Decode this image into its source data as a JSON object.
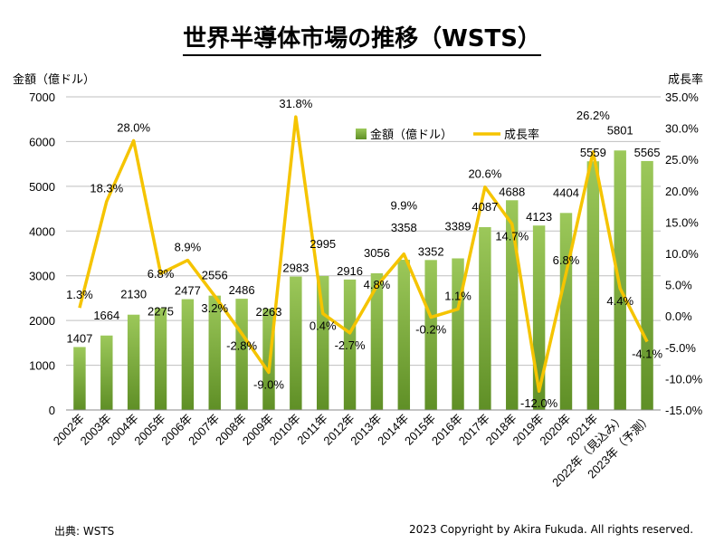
{
  "chart_data": {
    "type": "bar+line",
    "title": "世界半導体市場の推移（WSTS）",
    "ylabel_left": "金額（億ドル）",
    "ylabel_right": "成長率",
    "ylim_left": [
      0,
      7000
    ],
    "ylim_right": [
      -15,
      35
    ],
    "yticks_left": [
      "0",
      "1000",
      "2000",
      "3000",
      "4000",
      "5000",
      "6000",
      "7000"
    ],
    "yticks_right": [
      "-15.0%",
      "-10.0%",
      "-5.0%",
      "0.0%",
      "5.0%",
      "10.0%",
      "15.0%",
      "20.0%",
      "25.0%",
      "30.0%",
      "35.0%"
    ],
    "grid": "horizontal",
    "legend": "top-center",
    "categories": [
      "2002年",
      "2003年",
      "2004年",
      "2005年",
      "2006年",
      "2007年",
      "2008年",
      "2009年",
      "2010年",
      "2011年",
      "2012年",
      "2013年",
      "2014年",
      "2015年",
      "2016年",
      "2017年",
      "2018年",
      "2019年",
      "2020年",
      "2021年",
      "2022年（見込み）",
      "2023年（予測）"
    ],
    "series": [
      {
        "name": "金額（億ドル）",
        "type": "bar",
        "color": "#7aa83a",
        "values": [
          1407,
          1664,
          2130,
          2275,
          2477,
          2556,
          2486,
          2263,
          2983,
          2995,
          2916,
          3056,
          3358,
          3352,
          3389,
          4087,
          4688,
          4123,
          4404,
          5559,
          5801,
          5565
        ]
      },
      {
        "name": "成長率",
        "type": "line",
        "color": "#f5c400",
        "values": [
          1.3,
          18.3,
          28.0,
          6.8,
          8.9,
          3.2,
          -2.8,
          -9.0,
          31.8,
          0.4,
          -2.7,
          4.8,
          9.9,
          -0.2,
          1.1,
          20.6,
          14.7,
          -12.0,
          6.8,
          26.2,
          4.4,
          -4.1
        ]
      }
    ]
  },
  "footer": {
    "source": "出典: WSTS",
    "copyright": "2023 Copyright by Akira Fukuda. All rights reserved."
  }
}
